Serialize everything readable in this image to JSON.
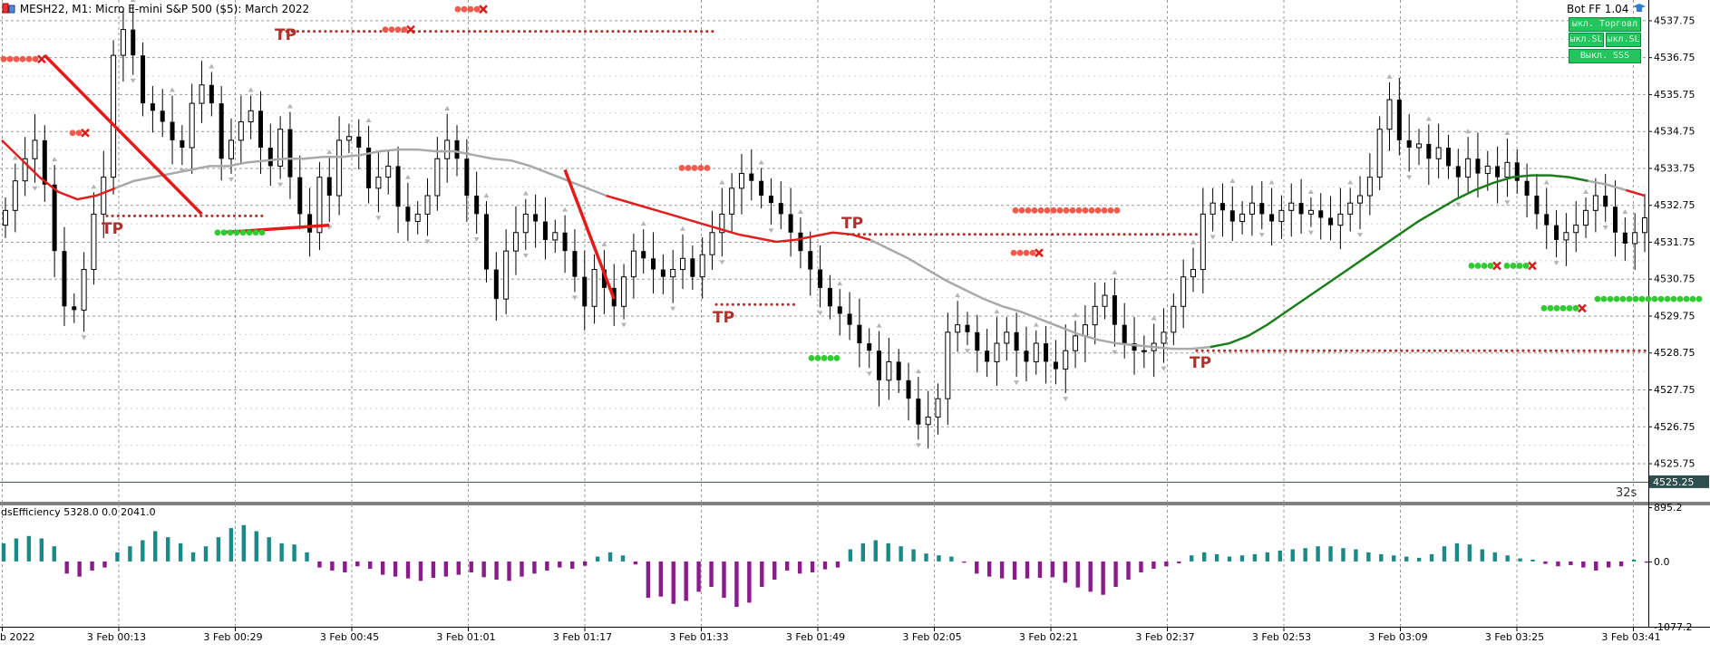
{
  "header": {
    "symbol_line": "MESH22, M1:  Micro E-mini S&P 500 ($5): March 2022",
    "ea_name": "Bot FF 1.04",
    "countdown": "32s",
    "panel_buttons": [
      "ыкл. Торговл",
      "ыкл.SL",
      "ыкл.SL",
      "Выкл. SSS"
    ]
  },
  "colors": {
    "bull_candle": "#000000",
    "bear_candle": "#000000",
    "ma_gray": "#a9a9a9",
    "ma_red": "#e21e1e",
    "ma_green": "#1a7f1a",
    "tp_dotted": "#b0302a",
    "order_red": "#f4594b",
    "order_green": "#2ecc2e",
    "hist_pos": "#1a8a88",
    "hist_neg": "#8b1a8b",
    "price_tag_bg": "#2f4f4f"
  },
  "chart_data": [
    {
      "type": "candlestick",
      "title": "MESH22, M1:  Micro E-mini S&P 500 ($5): March 2022",
      "y_ticks": [
        "4537.75",
        "4536.75",
        "4535.75",
        "4534.75",
        "4533.75",
        "4532.75",
        "4531.75",
        "4530.75",
        "4529.75",
        "4528.75",
        "4527.75",
        "4526.75",
        "4525.75"
      ],
      "ylim": [
        4525.1,
        4538.3
      ],
      "current_price": "4525.25",
      "x_ticks": [
        "b 2022",
        "3 Feb 00:13",
        "3 Feb 00:29",
        "3 Feb 00:45",
        "3 Feb 01:01",
        "3 Feb 01:17",
        "3 Feb 01:33",
        "3 Feb 01:49",
        "3 Feb 02:05",
        "3 Feb 02:21",
        "3 Feb 02:37",
        "3 Feb 02:53",
        "3 Feb 03:09",
        "3 Feb 03:25",
        "3 Feb 03:41"
      ],
      "candles_close": [
        4532.6,
        4533.4,
        4534.0,
        4534.5,
        4533.3,
        4531.5,
        4530.0,
        4529.9,
        4531.0,
        4532.5,
        4533.5,
        4536.8,
        4537.5,
        4536.8,
        4535.5,
        4535.3,
        4535.0,
        4534.5,
        4534.3,
        4535.5,
        4536.0,
        4535.5,
        4534.0,
        4534.5,
        4535.0,
        4535.3,
        4534.3,
        4533.8,
        4534.8,
        4533.5,
        4532.5,
        4532.0,
        4533.5,
        4533.0,
        4534.5,
        4534.6,
        4534.3,
        4533.2,
        4533.5,
        4533.8,
        4532.7,
        4532.3,
        4532.5,
        4533.0,
        4534.0,
        4534.5,
        4534.0,
        4533.0,
        4532.5,
        4531.0,
        4530.2,
        4531.5,
        4532.0,
        4532.5,
        4532.3,
        4531.8,
        4532.0,
        4531.5,
        4530.8,
        4530.0,
        4531.0,
        4530.5,
        4530.0,
        4530.8,
        4531.5,
        4531.3,
        4531.0,
        4530.8,
        4531.0,
        4531.3,
        4530.8,
        4531.4,
        4532.0,
        4532.5,
        4533.2,
        4533.6,
        4533.4,
        4533.0,
        4532.8,
        4532.5,
        4532.0,
        4531.5,
        4531.0,
        4530.5,
        4530.0,
        4529.8,
        4529.5,
        4529.0,
        4528.8,
        4528.0,
        4528.5,
        4528.0,
        4527.5,
        4526.8,
        4527.0,
        4527.5,
        4529.3,
        4529.5,
        4529.3,
        4528.8,
        4528.5,
        4529.0,
        4529.3,
        4528.8,
        4528.5,
        4529.0,
        4528.5,
        4528.3,
        4528.8,
        4529.2,
        4529.5,
        4530.0,
        4530.3,
        4529.5,
        4529.0,
        4528.8,
        4528.8,
        4529.0,
        4529.3,
        4530.0,
        4530.8,
        4531.0,
        4532.5,
        4532.8,
        4532.6,
        4532.3,
        4532.5,
        4532.8,
        4532.5,
        4532.3,
        4532.6,
        4532.8,
        4532.5,
        4532.6,
        4532.4,
        4532.2,
        4532.5,
        4532.8,
        4533.0,
        4533.5,
        4534.8,
        4535.6,
        4534.5,
        4534.3,
        4534.4,
        4534.0,
        4534.3,
        4533.8,
        4533.5,
        4534.0,
        4533.6,
        4533.8,
        4533.5,
        4533.9,
        4533.4,
        4533.0,
        4532.5,
        4532.2,
        4531.8,
        4532.0,
        4532.2,
        4532.6,
        4533.0,
        4532.7,
        4532.0,
        4531.7,
        4532.0,
        4532.4
      ],
      "ma_series": [
        4534.5,
        4534.0,
        4533.5,
        4533.1,
        4532.9,
        4533.0,
        4533.2,
        4533.4,
        4533.5,
        4533.6,
        4533.7,
        4533.8,
        4533.8,
        4533.9,
        4533.95,
        4534.0,
        4534.0,
        4534.05,
        4534.05,
        4534.1,
        4534.2,
        4534.25,
        4534.25,
        4534.2,
        4534.2,
        4534.1,
        4534.0,
        4533.95,
        4533.8,
        4533.6,
        4533.4,
        4533.2,
        4533.0,
        4532.85,
        4532.7,
        4532.55,
        4532.4,
        4532.25,
        4532.1,
        4531.95,
        4531.85,
        4531.75,
        4531.8,
        4531.9,
        4532.0,
        4531.95,
        4531.8,
        4531.55,
        4531.3,
        4531.0,
        4530.7,
        4530.45,
        4530.2,
        4530.0,
        4529.85,
        4529.65,
        4529.45,
        4529.25,
        4529.1,
        4529.0,
        4528.95,
        4528.9,
        4528.85,
        4528.85,
        4528.9,
        4529.0,
        4529.2,
        4529.5,
        4529.85,
        4530.2,
        4530.55,
        4530.9,
        4531.25,
        4531.6,
        4531.95,
        4532.3,
        4532.6,
        4532.9,
        4533.15,
        4533.35,
        4533.5,
        4533.55,
        4533.55,
        4533.5,
        4533.4,
        4533.3,
        4533.15,
        4533.0
      ],
      "ma_color_ranges": [
        {
          "from": 0,
          "to": 6,
          "color": "ma_red"
        },
        {
          "from": 6,
          "to": 32,
          "color": "ma_gray"
        },
        {
          "from": 32,
          "to": 46,
          "color": "ma_red"
        },
        {
          "from": 46,
          "to": 64,
          "color": "ma_gray"
        },
        {
          "from": 64,
          "to": 84,
          "color": "ma_green"
        },
        {
          "from": 84,
          "to": 86,
          "color": "ma_gray"
        },
        {
          "from": 86,
          "to": 87,
          "color": "ma_red"
        }
      ],
      "tp_levels": [
        {
          "label": "TP",
          "price": 4537.45
        },
        {
          "label": "TP",
          "price": 4532.45
        },
        {
          "label": "TP",
          "price": 4531.95
        },
        {
          "label": "TP",
          "price": 4530.05
        },
        {
          "label": "TP",
          "price": 4528.8
        }
      ],
      "trade_lines": [
        {
          "from": {
            "x": 4,
            "y": 4536.8
          },
          "to": {
            "x": 20,
            "y": 4532.5
          }
        },
        {
          "from": {
            "x": 22,
            "y": 4532.0
          },
          "to": {
            "x": 33,
            "y": 4532.2
          }
        },
        {
          "from": {
            "x": 57,
            "y": 4533.7
          },
          "to": {
            "x": 62,
            "y": 4530.2
          }
        }
      ],
      "markers_text": [
        "TP",
        "TP",
        "TP",
        "TP",
        "TP"
      ]
    },
    {
      "type": "bar",
      "title": "dsEfficiency 5328.0 0.0 2041.0",
      "y_ticks": [
        "895.2",
        "0.0",
        "-1077.2"
      ],
      "ylim": [
        -1077.2,
        895.2
      ],
      "values": [
        300,
        380,
        420,
        380,
        250,
        -200,
        -250,
        -150,
        -100,
        150,
        250,
        350,
        500,
        400,
        300,
        150,
        250,
        400,
        550,
        600,
        500,
        400,
        300,
        280,
        150,
        -100,
        -150,
        -180,
        -80,
        -120,
        -220,
        -250,
        -280,
        -320,
        -270,
        -250,
        -220,
        -180,
        -260,
        -300,
        -320,
        -250,
        -200,
        -150,
        -100,
        -120,
        -70,
        80,
        150,
        100,
        -50,
        -600,
        -580,
        -700,
        -650,
        -500,
        -420,
        -600,
        -750,
        -680,
        -420,
        -300,
        -150,
        -200,
        -180,
        -130,
        -100,
        200,
        300,
        350,
        300,
        250,
        200,
        130,
        100,
        80,
        -20,
        -200,
        -250,
        -280,
        -300,
        -280,
        -270,
        -260,
        -350,
        -430,
        -500,
        -550,
        -420,
        -300,
        -180,
        -120,
        -80,
        -30,
        100,
        150,
        120,
        80,
        100,
        120,
        150,
        180,
        200,
        220,
        250,
        250,
        220,
        200,
        150,
        120,
        100,
        80,
        60,
        120,
        250,
        300,
        280,
        200,
        150,
        100,
        50,
        30,
        -40,
        -80,
        -60,
        -100,
        -150,
        -100,
        -80,
        30,
        -20
      ]
    }
  ]
}
